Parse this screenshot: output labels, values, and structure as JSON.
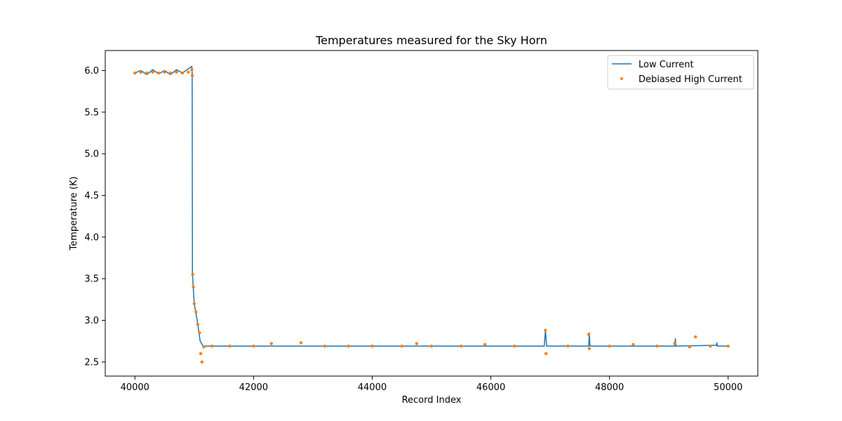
{
  "chart_data": {
    "type": "line",
    "title": "Temperatures measured for the Sky Horn",
    "xlabel": "Record Index",
    "ylabel": "Temperature (K)",
    "xlim": [
      39500,
      50500
    ],
    "ylim": [
      2.33,
      6.24
    ],
    "xticks": [
      40000,
      42000,
      44000,
      46000,
      48000,
      50000
    ],
    "yticks": [
      2.5,
      3.0,
      3.5,
      4.0,
      4.5,
      5.0,
      5.5,
      6.0
    ],
    "legend": "top-right",
    "grid": false,
    "series": [
      {
        "name": "Low Current",
        "kind": "line",
        "color": "#1f77b4",
        "points": [
          [
            40000,
            5.97
          ],
          [
            40100,
            6.0
          ],
          [
            40200,
            5.95
          ],
          [
            40300,
            6.01
          ],
          [
            40400,
            5.96
          ],
          [
            40500,
            6.0
          ],
          [
            40600,
            5.95
          ],
          [
            40700,
            6.01
          ],
          [
            40800,
            5.97
          ],
          [
            40900,
            6.02
          ],
          [
            40960,
            6.05
          ],
          [
            40965,
            5.96
          ],
          [
            40970,
            3.55
          ],
          [
            41000,
            3.2
          ],
          [
            41050,
            3.0
          ],
          [
            41100,
            2.75
          ],
          [
            41150,
            2.69
          ],
          [
            41400,
            2.69
          ],
          [
            42000,
            2.69
          ],
          [
            43000,
            2.69
          ],
          [
            44000,
            2.69
          ],
          [
            45000,
            2.69
          ],
          [
            46000,
            2.69
          ],
          [
            46900,
            2.69
          ],
          [
            46920,
            2.88
          ],
          [
            46940,
            2.69
          ],
          [
            47650,
            2.69
          ],
          [
            47660,
            2.85
          ],
          [
            47670,
            2.69
          ],
          [
            49100,
            2.69
          ],
          [
            49110,
            2.78
          ],
          [
            49120,
            2.69
          ],
          [
            49800,
            2.7
          ],
          [
            49810,
            2.73
          ],
          [
            49820,
            2.69
          ],
          [
            50000,
            2.69
          ]
        ]
      },
      {
        "name": "Debiased High Current",
        "kind": "scatter",
        "color": "#ff7f0e",
        "points": [
          [
            40000,
            5.97
          ],
          [
            40100,
            5.98
          ],
          [
            40200,
            5.97
          ],
          [
            40300,
            5.98
          ],
          [
            40400,
            5.97
          ],
          [
            40500,
            5.98
          ],
          [
            40600,
            5.97
          ],
          [
            40700,
            5.98
          ],
          [
            40800,
            5.97
          ],
          [
            40900,
            5.98
          ],
          [
            40960,
            6.01
          ],
          [
            40968,
            5.94
          ],
          [
            40975,
            3.55
          ],
          [
            40985,
            3.4
          ],
          [
            41000,
            3.2
          ],
          [
            41030,
            3.1
          ],
          [
            41060,
            2.95
          ],
          [
            41090,
            2.85
          ],
          [
            41110,
            2.6
          ],
          [
            41130,
            2.5
          ],
          [
            41160,
            2.68
          ],
          [
            41300,
            2.69
          ],
          [
            41600,
            2.69
          ],
          [
            42000,
            2.69
          ],
          [
            42300,
            2.72
          ],
          [
            42800,
            2.73
          ],
          [
            43200,
            2.69
          ],
          [
            43600,
            2.69
          ],
          [
            44000,
            2.69
          ],
          [
            44500,
            2.69
          ],
          [
            44750,
            2.72
          ],
          [
            45000,
            2.69
          ],
          [
            45500,
            2.69
          ],
          [
            45900,
            2.71
          ],
          [
            46400,
            2.69
          ],
          [
            46920,
            2.88
          ],
          [
            46930,
            2.6
          ],
          [
            47300,
            2.69
          ],
          [
            47650,
            2.83
          ],
          [
            47660,
            2.66
          ],
          [
            48000,
            2.69
          ],
          [
            48400,
            2.71
          ],
          [
            48800,
            2.69
          ],
          [
            49100,
            2.72
          ],
          [
            49350,
            2.68
          ],
          [
            49450,
            2.8
          ],
          [
            49700,
            2.69
          ],
          [
            50000,
            2.69
          ]
        ]
      }
    ]
  }
}
